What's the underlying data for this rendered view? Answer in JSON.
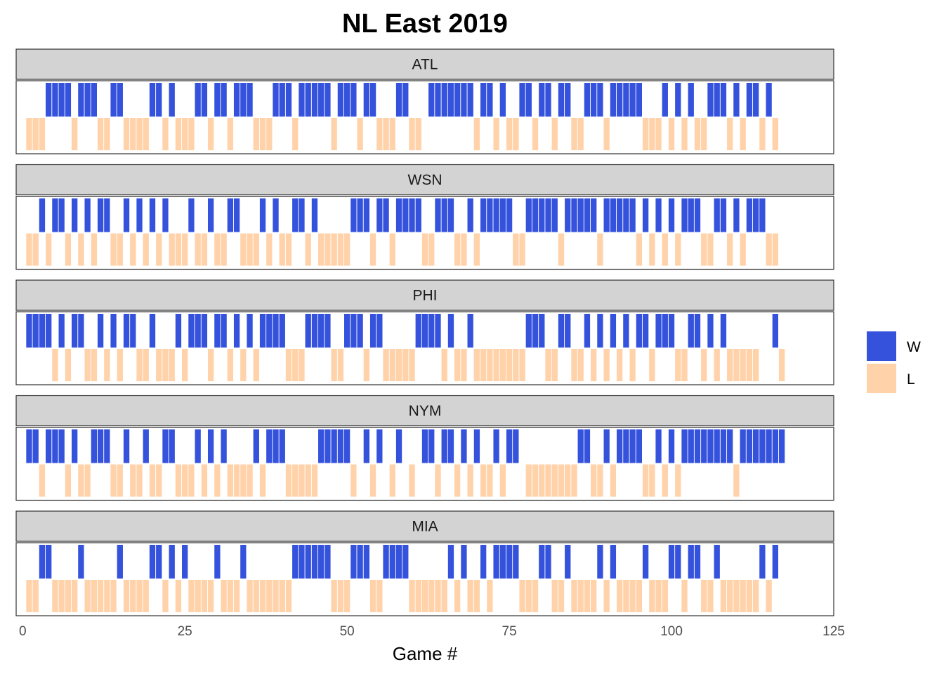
{
  "chart_data": {
    "type": "bar",
    "title": "NL East 2019",
    "xlabel": "Game #",
    "xlim": [
      -1,
      125
    ],
    "x_ticks": [
      0,
      25,
      50,
      75,
      100,
      125
    ],
    "facet_layout": "rows",
    "legend": {
      "position": "right",
      "entries": [
        {
          "label": "W",
          "color": "#3552DD"
        },
        {
          "label": "L",
          "color": "#FFD2AA"
        }
      ]
    },
    "colors": {
      "W": "#3552DD",
      "L": "#FFD2AA"
    },
    "series": [
      {
        "name": "ATL",
        "wins": [
          4,
          5,
          6,
          7,
          9,
          10,
          11,
          14,
          15,
          20,
          21,
          23,
          27,
          28,
          30,
          31,
          33,
          34,
          35,
          39,
          40,
          41,
          43,
          44,
          45,
          46,
          47,
          49,
          50,
          51,
          53,
          54,
          58,
          59,
          63,
          64,
          65,
          66,
          67,
          68,
          69,
          71,
          72,
          74,
          77,
          78,
          80,
          81,
          83,
          84,
          87,
          88,
          89,
          91,
          92,
          93,
          94,
          95,
          99,
          101,
          103,
          106,
          107,
          108,
          110,
          112,
          113,
          115
        ],
        "losses": [
          1,
          2,
          3,
          8,
          12,
          13,
          16,
          17,
          18,
          19,
          22,
          24,
          25,
          26,
          29,
          32,
          36,
          37,
          38,
          42,
          48,
          52,
          55,
          56,
          57,
          60,
          61,
          70,
          73,
          75,
          76,
          79,
          82,
          85,
          86,
          90,
          96,
          97,
          98,
          100,
          102,
          104,
          105,
          109,
          111,
          114,
          116
        ]
      },
      {
        "name": "WSN",
        "wins": [
          3,
          5,
          6,
          8,
          10,
          12,
          13,
          16,
          18,
          20,
          22,
          26,
          29,
          32,
          33,
          37,
          39,
          42,
          43,
          45,
          51,
          52,
          53,
          55,
          56,
          58,
          59,
          60,
          61,
          64,
          65,
          66,
          69,
          71,
          72,
          73,
          74,
          75,
          78,
          79,
          80,
          81,
          82,
          84,
          85,
          86,
          87,
          88,
          90,
          91,
          92,
          93,
          94,
          96,
          98,
          100,
          102,
          103,
          104,
          107,
          108,
          110,
          112,
          113,
          114
        ],
        "losses": [
          1,
          2,
          4,
          7,
          9,
          11,
          14,
          15,
          17,
          19,
          21,
          23,
          24,
          25,
          27,
          28,
          30,
          31,
          34,
          35,
          36,
          38,
          40,
          41,
          44,
          46,
          47,
          48,
          49,
          50,
          54,
          57,
          62,
          63,
          67,
          68,
          70,
          76,
          77,
          83,
          89,
          95,
          97,
          99,
          101,
          105,
          106,
          109,
          111,
          115,
          116
        ]
      },
      {
        "name": "PHI",
        "wins": [
          1,
          2,
          3,
          4,
          6,
          8,
          9,
          12,
          14,
          16,
          17,
          20,
          24,
          26,
          27,
          28,
          30,
          31,
          33,
          35,
          37,
          38,
          39,
          40,
          44,
          45,
          46,
          47,
          50,
          51,
          52,
          54,
          55,
          61,
          62,
          63,
          64,
          66,
          69,
          78,
          79,
          80,
          83,
          84,
          87,
          89,
          91,
          93,
          95,
          96,
          98,
          99,
          100,
          103,
          104,
          106,
          108,
          116
        ],
        "losses": [
          5,
          7,
          10,
          11,
          13,
          15,
          18,
          19,
          21,
          22,
          23,
          25,
          29,
          32,
          34,
          36,
          41,
          42,
          43,
          48,
          49,
          53,
          56,
          57,
          58,
          59,
          60,
          65,
          67,
          68,
          70,
          71,
          72,
          73,
          74,
          75,
          76,
          77,
          81,
          82,
          85,
          86,
          88,
          90,
          92,
          94,
          97,
          101,
          102,
          105,
          107,
          109,
          110,
          111,
          112,
          113,
          117
        ]
      },
      {
        "name": "NYM",
        "wins": [
          1,
          2,
          4,
          5,
          6,
          8,
          11,
          12,
          13,
          16,
          19,
          22,
          23,
          27,
          29,
          31,
          36,
          38,
          39,
          40,
          46,
          47,
          48,
          49,
          50,
          53,
          55,
          58,
          62,
          63,
          65,
          66,
          68,
          70,
          73,
          75,
          76,
          86,
          87,
          90,
          92,
          93,
          94,
          95,
          98,
          100,
          102,
          103,
          104,
          105,
          106,
          107,
          108,
          109,
          111,
          112,
          113,
          114,
          115,
          116,
          117
        ],
        "losses": [
          3,
          7,
          9,
          10,
          14,
          15,
          17,
          18,
          20,
          21,
          24,
          25,
          26,
          28,
          30,
          32,
          33,
          34,
          35,
          37,
          41,
          42,
          43,
          44,
          45,
          51,
          54,
          57,
          60,
          64,
          67,
          69,
          71,
          72,
          74,
          78,
          79,
          80,
          81,
          82,
          83,
          84,
          85,
          88,
          89,
          91,
          96,
          97,
          99,
          101,
          110
        ]
      },
      {
        "name": "MIA",
        "wins": [
          3,
          4,
          9,
          15,
          20,
          21,
          23,
          25,
          30,
          34,
          42,
          43,
          44,
          45,
          46,
          47,
          51,
          52,
          53,
          56,
          57,
          58,
          59,
          66,
          68,
          71,
          73,
          74,
          75,
          76,
          80,
          81,
          84,
          89,
          91,
          96,
          100,
          101,
          103,
          104,
          107,
          114,
          116
        ],
        "losses": [
          1,
          2,
          5,
          6,
          7,
          8,
          10,
          11,
          12,
          13,
          14,
          16,
          17,
          18,
          19,
          22,
          24,
          26,
          27,
          28,
          29,
          31,
          32,
          33,
          35,
          36,
          37,
          38,
          39,
          40,
          41,
          48,
          49,
          50,
          54,
          55,
          60,
          61,
          62,
          63,
          64,
          65,
          67,
          69,
          70,
          72,
          77,
          78,
          79,
          82,
          83,
          85,
          86,
          87,
          88,
          90,
          92,
          93,
          94,
          95,
          97,
          98,
          99,
          102,
          105,
          106,
          108,
          109,
          110,
          111,
          112,
          113,
          115
        ]
      }
    ]
  }
}
